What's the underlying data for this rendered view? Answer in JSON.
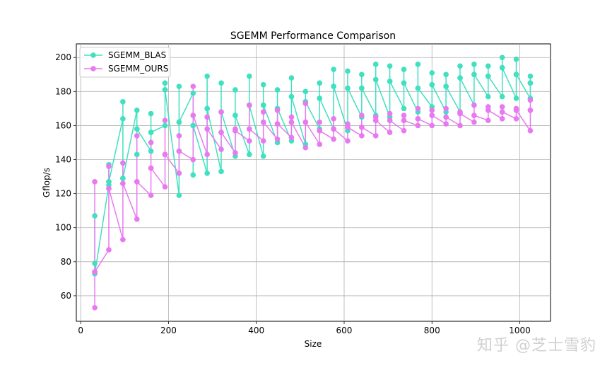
{
  "chart_data": {
    "type": "line",
    "title": "SGEMM Performance Comparison",
    "xlabel": "Size",
    "ylabel": "Gflop/s",
    "xlim": [
      -10,
      1070
    ],
    "ylim": [
      45,
      208
    ],
    "xticks": [
      0,
      200,
      400,
      600,
      800,
      1000
    ],
    "yticks": [
      60,
      80,
      100,
      120,
      140,
      160,
      180,
      200
    ],
    "grid": true,
    "legend_position": "top-left",
    "series": [
      {
        "name": "SGEMM_BLAS",
        "color": "#40e0c0",
        "x": [
          32,
          32,
          32,
          32,
          64,
          64,
          64,
          64,
          96,
          96,
          96,
          96,
          128,
          128,
          128,
          128,
          160,
          160,
          160,
          160,
          192,
          192,
          192,
          192,
          224,
          224,
          224,
          224,
          256,
          256,
          256,
          256,
          288,
          288,
          288,
          288,
          320,
          320,
          320,
          320,
          352,
          352,
          352,
          352,
          384,
          384,
          384,
          384,
          416,
          416,
          416,
          416,
          448,
          448,
          448,
          448,
          480,
          480,
          480,
          480,
          512,
          512,
          512,
          512,
          544,
          544,
          544,
          544,
          576,
          576,
          576,
          576,
          608,
          608,
          608,
          608,
          640,
          640,
          640,
          640,
          672,
          672,
          672,
          672,
          704,
          704,
          704,
          704,
          736,
          736,
          736,
          736,
          768,
          768,
          768,
          768,
          800,
          800,
          800,
          800,
          832,
          832,
          832,
          832,
          864,
          864,
          864,
          864,
          896,
          896,
          896,
          896,
          928,
          928,
          928,
          928,
          960,
          960,
          960,
          960,
          992,
          992,
          992,
          992,
          1024,
          1024,
          1024,
          1024
        ],
        "y": [
          79,
          107,
          73,
          73,
          125,
          127,
          137,
          127,
          164,
          174,
          129,
          129,
          169,
          143,
          158,
          158,
          145,
          167,
          156,
          156,
          160,
          181,
          185,
          181,
          119,
          162,
          183,
          162,
          179,
          131,
          160,
          160,
          132,
          170,
          189,
          170,
          133,
          168,
          185,
          168,
          142,
          166,
          181,
          166,
          143,
          172,
          189,
          172,
          142,
          172,
          184,
          172,
          150,
          170,
          181,
          170,
          151,
          177,
          188,
          177,
          149,
          174,
          180,
          174,
          158,
          176,
          185,
          176,
          158,
          183,
          193,
          183,
          157,
          182,
          192,
          182,
          165,
          182,
          190,
          182,
          166,
          187,
          196,
          187,
          165,
          186,
          195,
          186,
          170,
          185,
          193,
          185,
          168,
          182,
          196,
          182,
          171,
          184,
          191,
          184,
          168,
          183,
          190,
          183,
          168,
          188,
          195,
          188,
          172,
          190,
          196,
          190,
          177,
          189,
          195,
          189,
          177,
          194,
          200,
          194,
          176,
          190,
          199,
          190,
          176,
          185,
          189,
          185
        ]
      },
      {
        "name": "SGEMM_OURS",
        "color": "#e879f0",
        "x": [
          32,
          32,
          32,
          32,
          64,
          64,
          64,
          64,
          96,
          96,
          96,
          96,
          128,
          128,
          128,
          128,
          160,
          160,
          160,
          160,
          192,
          192,
          192,
          192,
          224,
          224,
          224,
          224,
          256,
          256,
          256,
          256,
          288,
          288,
          288,
          288,
          320,
          320,
          320,
          320,
          352,
          352,
          352,
          352,
          384,
          384,
          384,
          384,
          416,
          416,
          416,
          416,
          448,
          448,
          448,
          448,
          480,
          480,
          480,
          480,
          512,
          512,
          512,
          512,
          544,
          544,
          544,
          544,
          576,
          576,
          576,
          576,
          608,
          608,
          608,
          608,
          640,
          640,
          640,
          640,
          672,
          672,
          672,
          672,
          704,
          704,
          704,
          704,
          736,
          736,
          736,
          736,
          768,
          768,
          768,
          768,
          800,
          800,
          800,
          800,
          832,
          832,
          832,
          832,
          864,
          864,
          864,
          864,
          896,
          896,
          896,
          896,
          928,
          928,
          928,
          928,
          960,
          960,
          960,
          960,
          992,
          992,
          992,
          992,
          1024,
          1024,
          1024,
          1024
        ],
        "y": [
          53,
          127,
          74,
          74,
          87,
          136,
          123,
          123,
          93,
          138,
          126,
          126,
          105,
          154,
          127,
          127,
          119,
          150,
          135,
          135,
          124,
          163,
          143,
          143,
          132,
          154,
          145,
          145,
          140,
          183,
          166,
          166,
          143,
          165,
          158,
          158,
          146,
          168,
          156,
          156,
          144,
          157,
          158,
          157,
          151,
          172,
          158,
          158,
          151,
          168,
          162,
          162,
          152,
          169,
          161,
          161,
          153,
          165,
          162,
          162,
          147,
          173,
          162,
          162,
          149,
          162,
          157,
          157,
          152,
          164,
          158,
          158,
          151,
          161,
          159,
          159,
          154,
          166,
          159,
          159,
          154,
          165,
          163,
          163,
          156,
          167,
          163,
          163,
          157,
          166,
          163,
          163,
          160,
          170,
          164,
          164,
          160,
          169,
          166,
          166,
          161,
          170,
          165,
          165,
          160,
          168,
          167,
          167,
          162,
          172,
          166,
          166,
          163,
          171,
          169,
          169,
          164,
          171,
          168,
          168,
          164,
          170,
          169,
          169,
          157,
          175,
          169,
          169
        ]
      }
    ]
  },
  "watermark": "知乎 @芝士雪豹"
}
